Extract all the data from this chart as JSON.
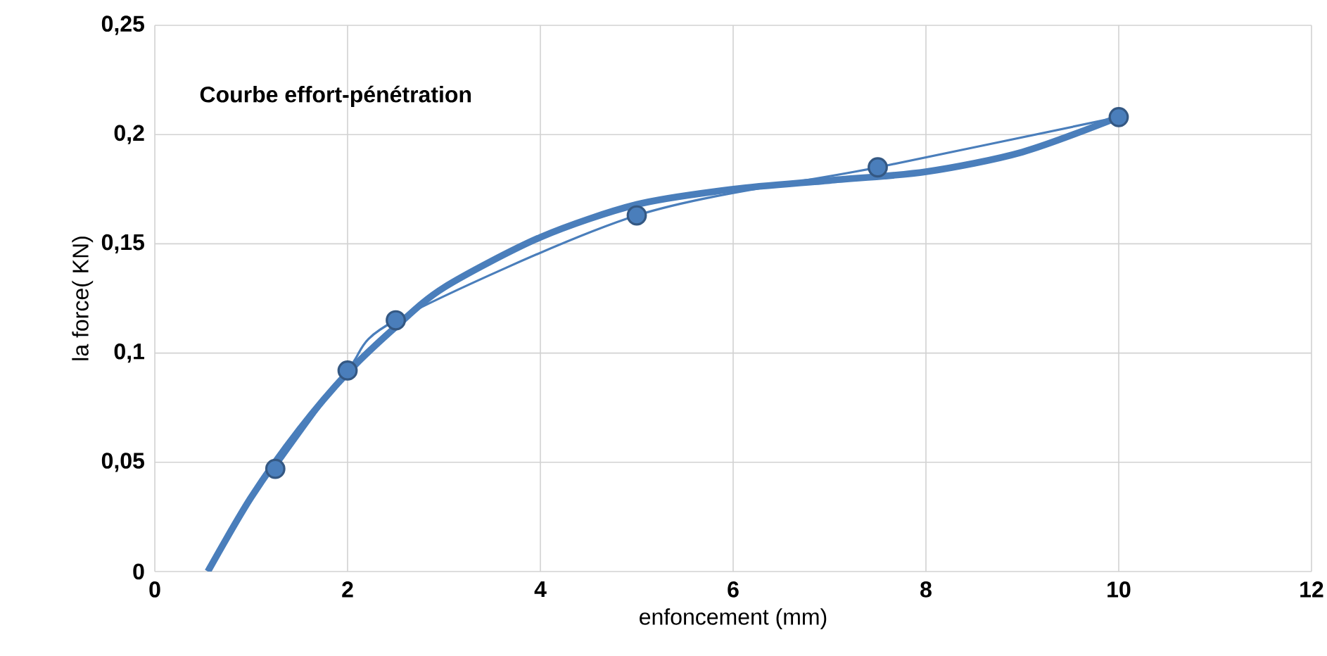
{
  "chart_data": {
    "type": "line",
    "title": "Courbe effort-pénétration",
    "xlabel": "enfoncement (mm)",
    "ylabel": "la force( KN)",
    "xlim": [
      0,
      12
    ],
    "xticks": [
      0,
      2,
      4,
      6,
      8,
      10,
      12
    ],
    "ylim": [
      0,
      0.25
    ],
    "yticks": [
      {
        "value": 0,
        "label": "0"
      },
      {
        "value": 0.05,
        "label": "0,05"
      },
      {
        "value": 0.1,
        "label": "0,1"
      },
      {
        "value": 0.15,
        "label": "0,15"
      },
      {
        "value": 0.2,
        "label": "0,2"
      },
      {
        "value": 0.25,
        "label": "0,25"
      }
    ],
    "grid": true,
    "series": [
      {
        "color": "#4a7ebb",
        "marker": "circle",
        "x": [
          1.25,
          2,
          2.5,
          5,
          7.5,
          10
        ],
        "values": [
          0.047,
          0.092,
          0.115,
          0.163,
          0.185,
          0.208
        ]
      },
      {
        "color": "#4a7ebb",
        "marker": "none",
        "x": [
          0.55,
          1,
          1.5,
          2,
          2.5,
          3,
          4,
          5,
          6,
          7,
          8,
          9,
          10
        ],
        "values": [
          0,
          0.034,
          0.065,
          0.091,
          0.112,
          0.13,
          0.153,
          0.168,
          0.175,
          0.179,
          0.183,
          0.192,
          0.208
        ]
      }
    ]
  }
}
